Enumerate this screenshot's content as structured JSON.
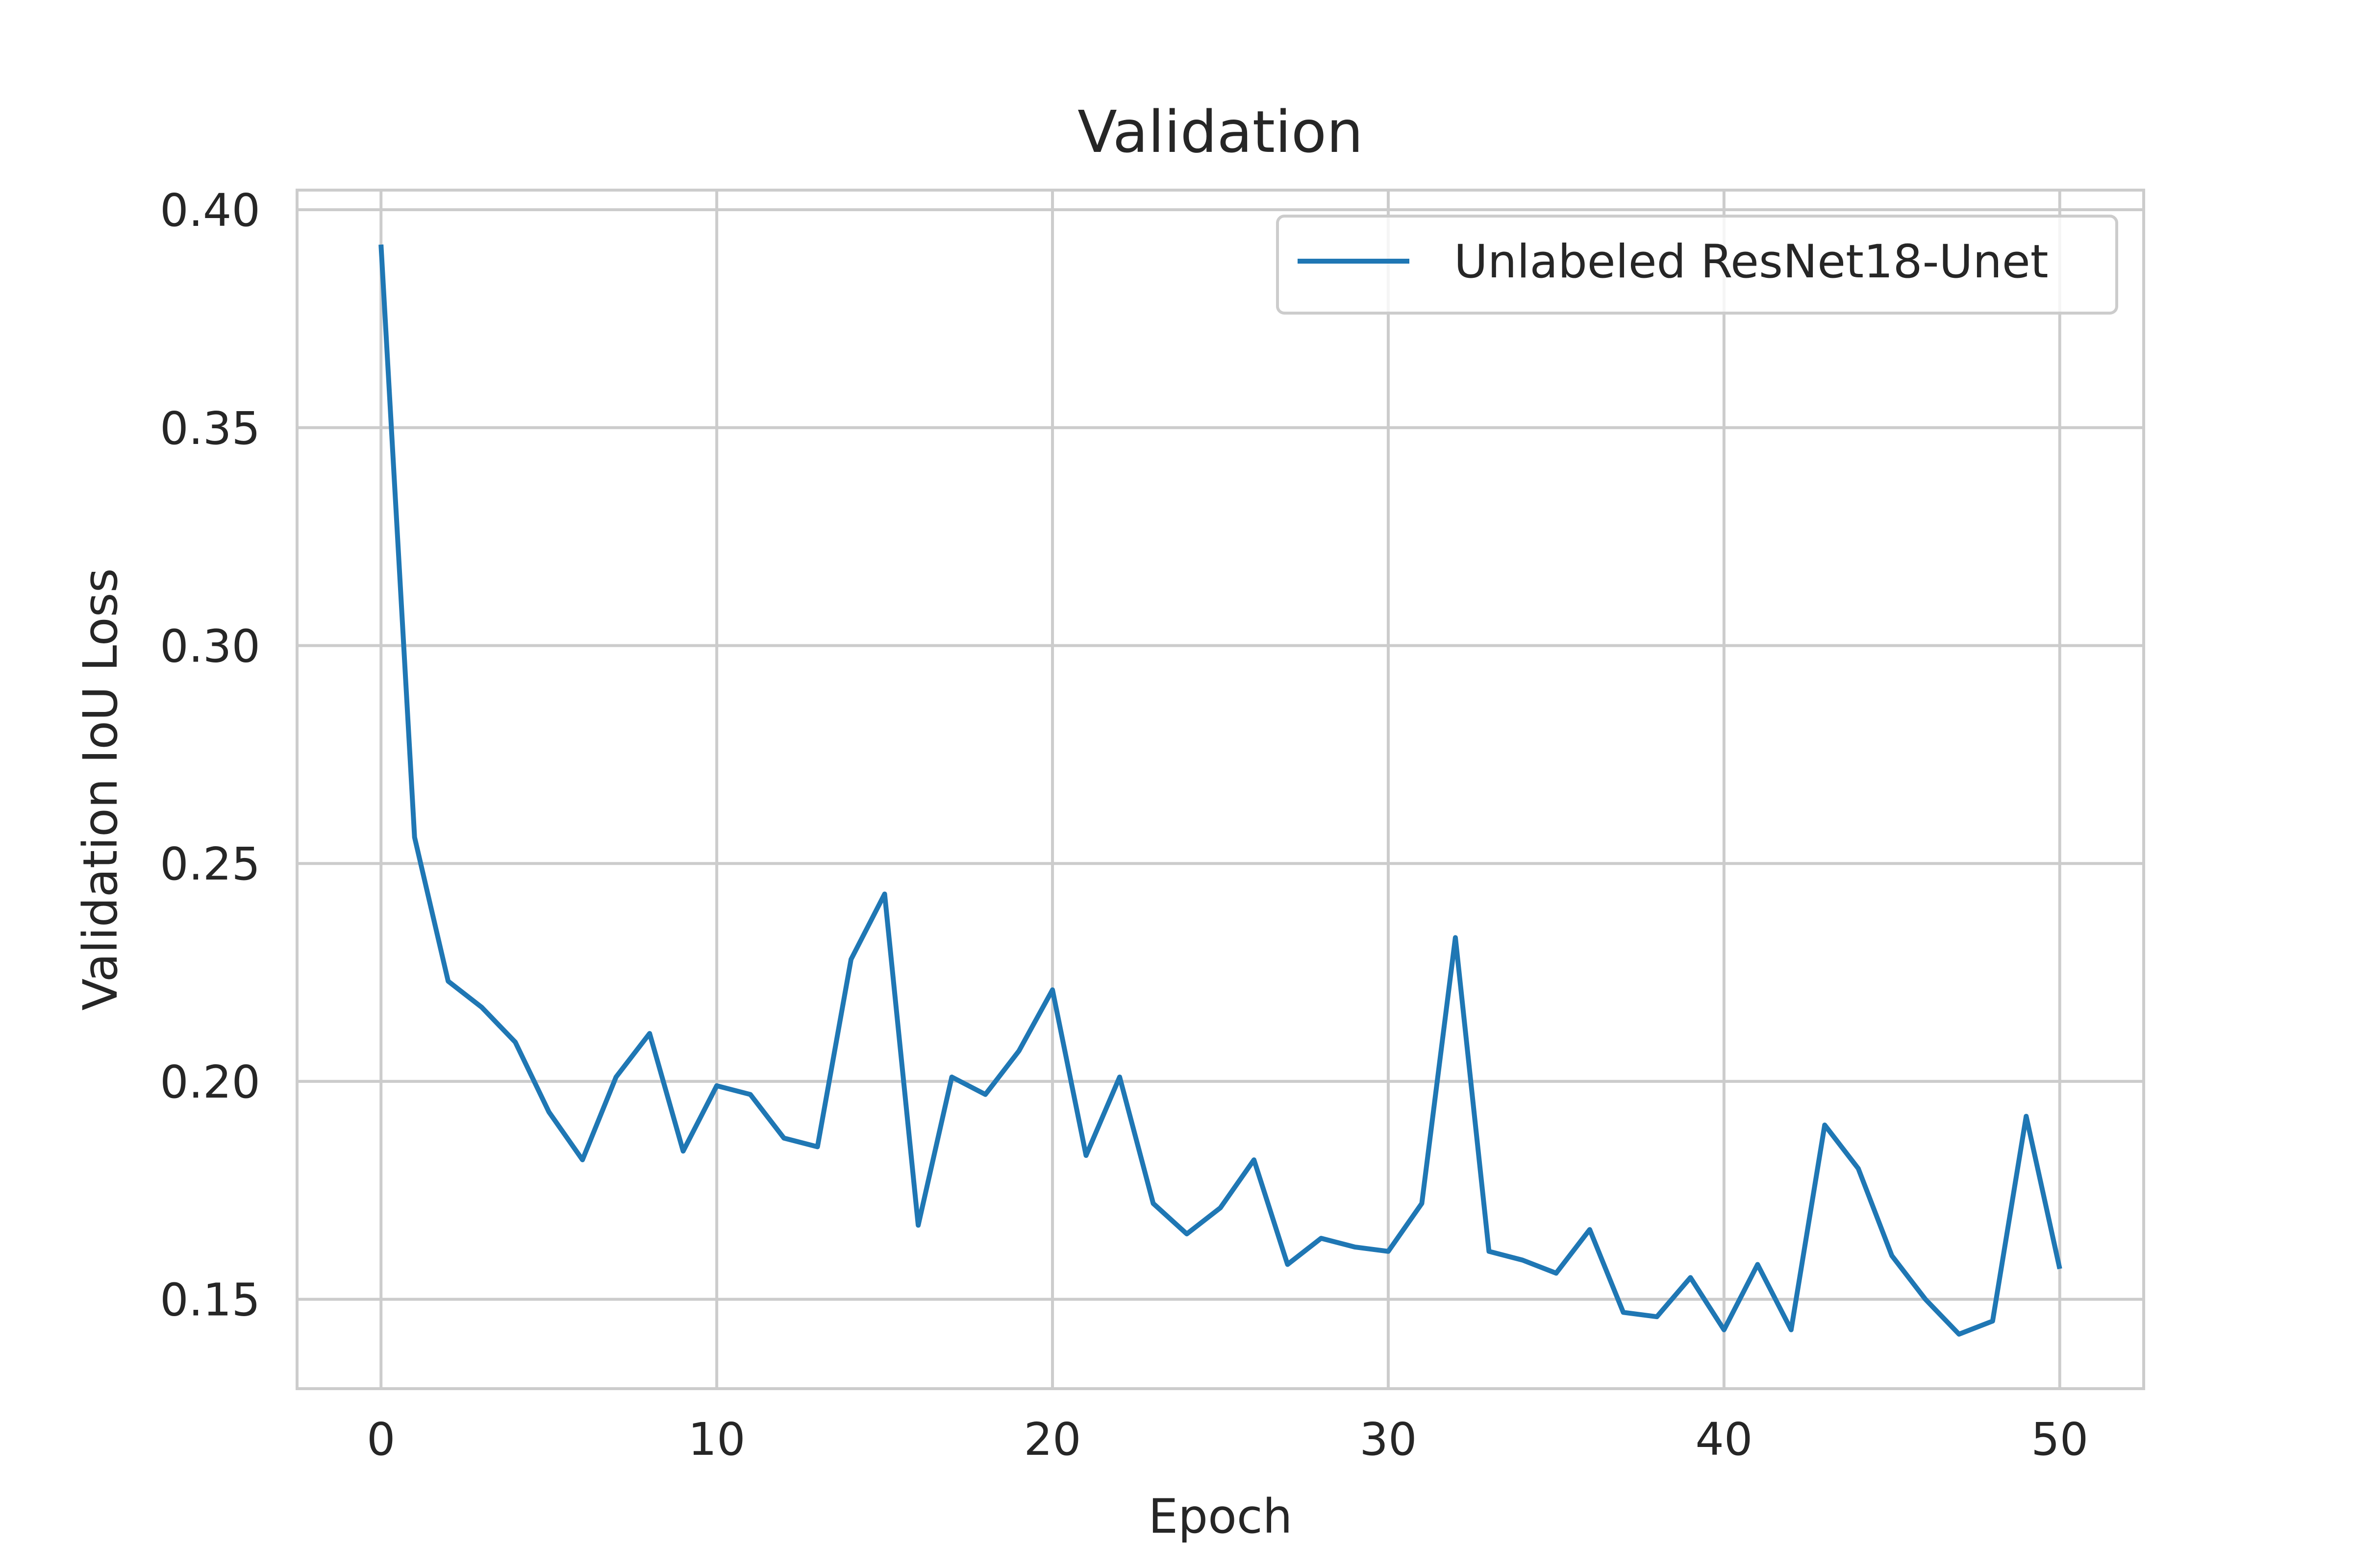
{
  "chart_data": {
    "type": "line",
    "title": "Validation",
    "xlabel": "Epoch",
    "ylabel": "Validation IoU Loss",
    "xlim": [
      -2.5,
      52.5
    ],
    "ylim": [
      0.1295,
      0.4045
    ],
    "xticks": [
      0,
      10,
      20,
      30,
      40,
      50
    ],
    "xtick_labels": [
      "0",
      "10",
      "20",
      "30",
      "40",
      "50"
    ],
    "yticks": [
      0.15,
      0.2,
      0.25,
      0.3,
      0.35,
      0.4
    ],
    "ytick_labels": [
      "0.15",
      "0.20",
      "0.25",
      "0.30",
      "0.35",
      "0.40"
    ],
    "grid": true,
    "legend_position": "upper right",
    "series": [
      {
        "name": "Unlabeled ResNet18-Unet",
        "color": "#1f77b4",
        "x": [
          0,
          1,
          2,
          3,
          4,
          5,
          6,
          7,
          8,
          9,
          10,
          11,
          12,
          13,
          14,
          15,
          16,
          17,
          18,
          19,
          20,
          21,
          22,
          23,
          24,
          25,
          26,
          27,
          28,
          29,
          30,
          31,
          32,
          33,
          34,
          35,
          36,
          37,
          38,
          39,
          40,
          41,
          42,
          43,
          44,
          45,
          46,
          47,
          48,
          49,
          50
        ],
        "values": [
          0.392,
          0.256,
          0.223,
          0.217,
          0.209,
          0.193,
          0.182,
          0.201,
          0.211,
          0.184,
          0.199,
          0.197,
          0.187,
          0.185,
          0.228,
          0.243,
          0.167,
          0.201,
          0.197,
          0.207,
          0.221,
          0.183,
          0.201,
          0.172,
          0.165,
          0.171,
          0.182,
          0.158,
          0.164,
          0.162,
          0.161,
          0.172,
          0.233,
          0.161,
          0.159,
          0.156,
          0.166,
          0.147,
          0.146,
          0.155,
          0.143,
          0.158,
          0.143,
          0.19,
          0.18,
          0.16,
          0.15,
          0.142,
          0.145,
          0.192,
          0.157
        ]
      }
    ]
  }
}
